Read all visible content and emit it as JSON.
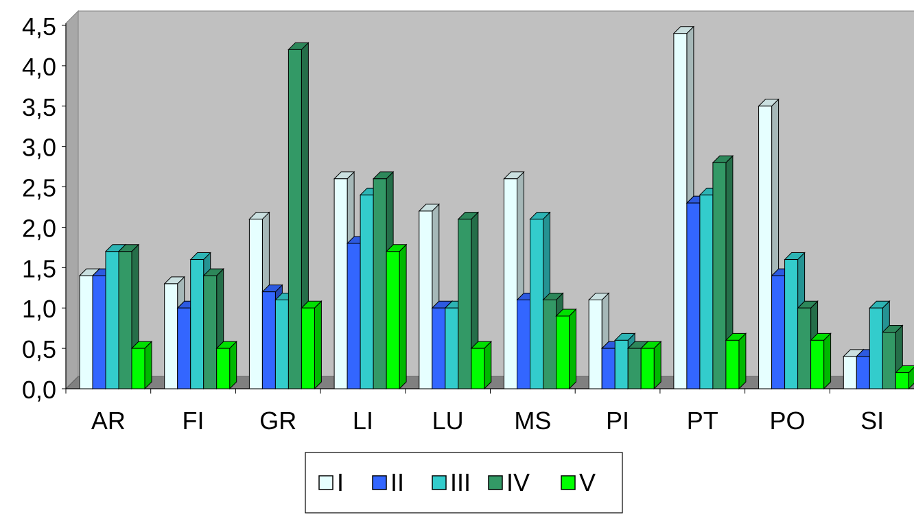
{
  "chart_data": {
    "type": "bar",
    "style": "3d-clustered-column",
    "categories": [
      "AR",
      "FI",
      "GR",
      "LI",
      "LU",
      "MS",
      "PI",
      "PT",
      "PO",
      "SI"
    ],
    "series": [
      {
        "name": "I",
        "color": "#E6FFFF",
        "values": [
          1.4,
          1.3,
          2.1,
          2.6,
          2.2,
          2.6,
          1.1,
          4.4,
          3.5,
          0.4
        ]
      },
      {
        "name": "II",
        "color": "#3366FF",
        "values": [
          1.4,
          1.0,
          1.2,
          1.8,
          1.0,
          1.1,
          0.5,
          2.3,
          1.4,
          0.4
        ]
      },
      {
        "name": "III",
        "color": "#33CCCC",
        "values": [
          1.7,
          1.6,
          1.1,
          2.4,
          1.0,
          2.1,
          0.6,
          2.4,
          1.6,
          1.0
        ]
      },
      {
        "name": "IV",
        "color": "#339966",
        "values": [
          1.7,
          1.4,
          4.2,
          2.6,
          2.1,
          1.1,
          0.5,
          2.8,
          1.0,
          0.7
        ]
      },
      {
        "name": "V",
        "color": "#00FF00",
        "values": [
          0.5,
          0.5,
          1.0,
          1.7,
          0.5,
          0.9,
          0.5,
          0.6,
          0.6,
          0.2
        ]
      }
    ],
    "ylim": [
      0,
      4.5
    ],
    "yticks": [
      "0,0",
      "0,5",
      "1,0",
      "1,5",
      "2,0",
      "2,5",
      "3,0",
      "3,5",
      "4,0",
      "4,5"
    ],
    "grid": false,
    "legend_position": "bottom",
    "wall_color": "#C0C0C0",
    "floor_color": "#808080"
  }
}
